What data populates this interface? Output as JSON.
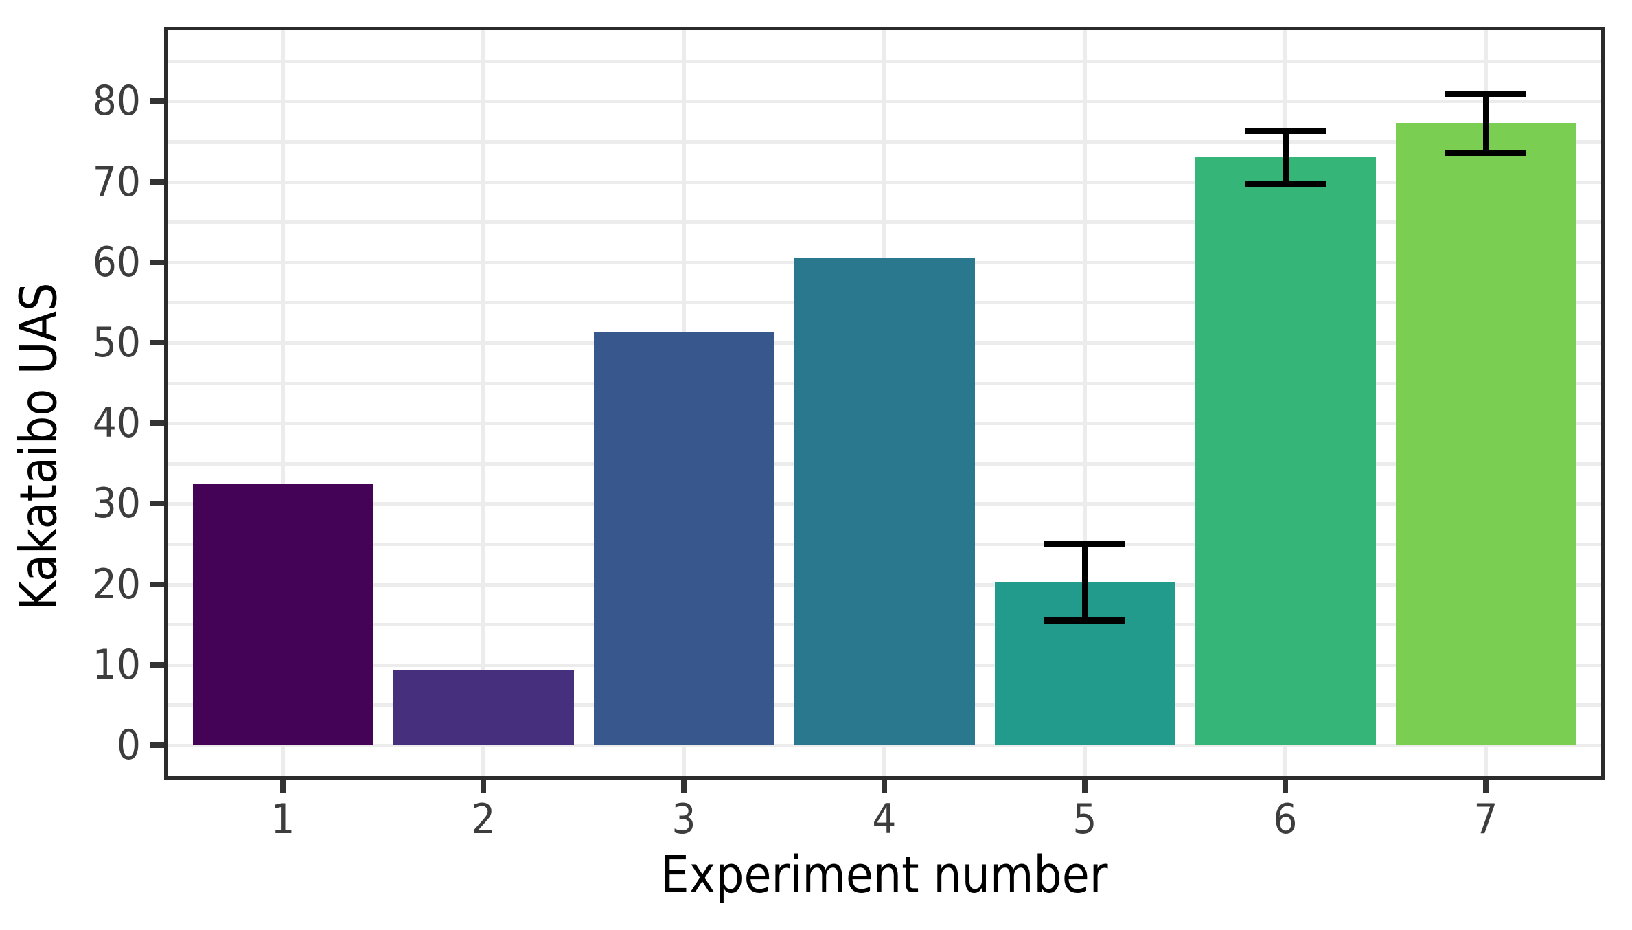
{
  "chart_data": {
    "type": "bar",
    "title": "",
    "xlabel": "Experiment number",
    "ylabel": "Kakataibo UAS",
    "categories": [
      "1",
      "2",
      "3",
      "4",
      "5",
      "6",
      "7"
    ],
    "values": [
      32.4,
      9.4,
      51.3,
      60.5,
      20.3,
      73.1,
      77.3
    ],
    "error_bars": [
      null,
      null,
      null,
      null,
      4.8,
      3.3,
      3.7
    ],
    "bar_colors": [
      "#440357",
      "#46307e",
      "#38578c",
      "#2a788e",
      "#229a8c",
      "#35b578",
      "#7ace52"
    ],
    "yticks": [
      "0",
      "10",
      "20",
      "30",
      "40",
      "50",
      "60",
      "70",
      "80"
    ],
    "ylim": [
      -4.3,
      89.2
    ],
    "grid": "horizontal lines every 5 units; vertical lines at category centers",
    "legend_position": "none"
  },
  "style": {
    "background": "#ffffff",
    "panel_border_color": "#2b2b2b",
    "gridline_color": "#ececec",
    "tick_color": "#333333",
    "tick_label_color": "#3d3d3d",
    "axis_title_color": "#000000",
    "error_bar_color": "#000000"
  }
}
